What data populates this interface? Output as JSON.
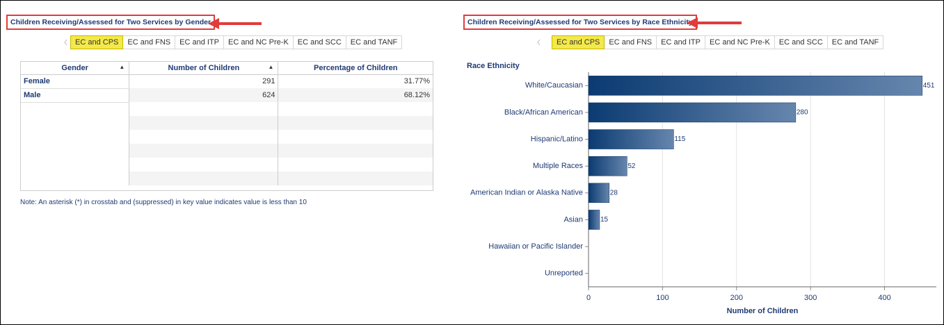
{
  "left": {
    "title": "Children Receiving/Assessed for Two Services by Gender",
    "tabs": [
      "EC and CPS",
      "EC and FNS",
      "EC and ITP",
      "EC and NC Pre-K",
      "EC and SCC",
      "EC and TANF"
    ],
    "selected": 0,
    "table": {
      "headers": [
        "Gender",
        "Number of Children",
        "Percentage of Children"
      ],
      "rows": [
        [
          "Female",
          "291",
          "31.77%"
        ],
        [
          "Male",
          "624",
          "68.12%"
        ]
      ]
    },
    "note": "Note: An asterisk (*) in crosstab and (suppressed) in key value indicates value is less than 10"
  },
  "right": {
    "title": "Children Receiving/Assessed for Two Services by Race Ethnicity",
    "tabs": [
      "EC and CPS",
      "EC and FNS",
      "EC and ITP",
      "EC and NC Pre-K",
      "EC and SCC",
      "EC and TANF"
    ],
    "selected": 0
  },
  "chart_data": {
    "type": "hbar",
    "y_axis_title": "Race Ethnicity",
    "x_axis_label": "Number of Children",
    "categories": [
      "White/Caucasian",
      "Black/African American",
      "Hispanic/Latino",
      "Multiple Races",
      "American Indian or Alaska Native",
      "Asian",
      "Hawaiian or Pacific Islander",
      "Unreported"
    ],
    "values": [
      451,
      280,
      115,
      52,
      28,
      15,
      null,
      null
    ],
    "colors": [
      "#0b3b72",
      "#6686ad"
    ],
    "xlim": [
      0,
      470
    ],
    "xticks": [
      0,
      100,
      200,
      300,
      400
    ],
    "grid": true
  }
}
